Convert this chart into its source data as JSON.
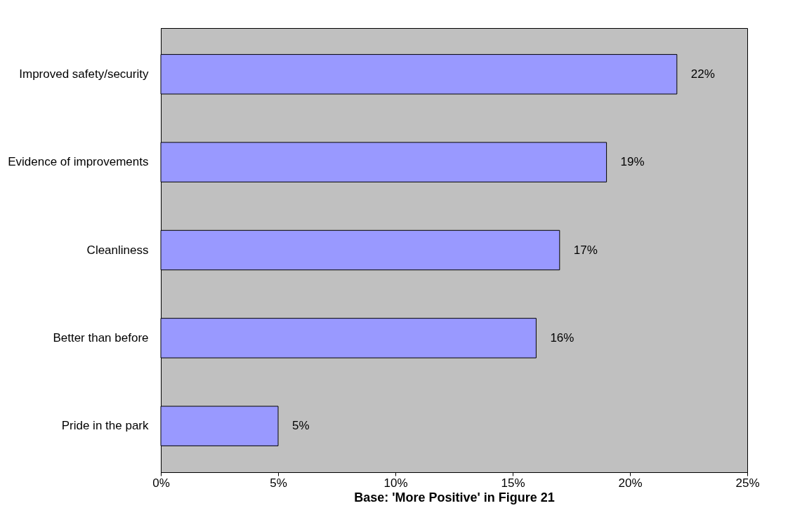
{
  "chart_data": {
    "type": "bar",
    "orientation": "horizontal",
    "xlabel": "Base: 'More Positive' in Figure 21",
    "categories": [
      "Improved safety/security",
      "Evidence of improvements",
      "Cleanliness",
      "Better than before",
      "Pride in the park"
    ],
    "series": [
      {
        "color": "#9999ff",
        "values": [
          22,
          19,
          17,
          16,
          5
        ],
        "value_labels": [
          "22%",
          "19%",
          "17%",
          "16%",
          "5%"
        ]
      }
    ],
    "xlim": [
      0,
      25
    ],
    "xticks": [
      {
        "value": 0,
        "label": "0%"
      },
      {
        "value": 5,
        "label": "5%"
      },
      {
        "value": 10,
        "label": "10%"
      },
      {
        "value": 15,
        "label": "15%"
      },
      {
        "value": 20,
        "label": "20%"
      },
      {
        "value": 25,
        "label": "25%"
      }
    ],
    "grid": false
  }
}
